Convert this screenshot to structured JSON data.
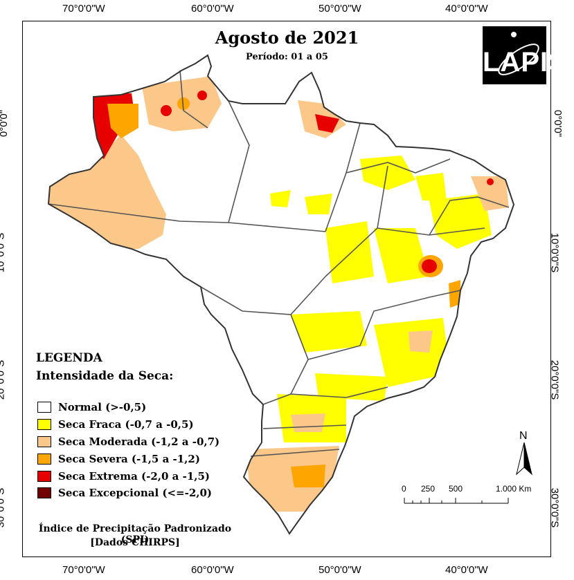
{
  "map": {
    "title": "Agosto de 2021",
    "subtitle": "Período: 01 a 05",
    "logo_text": "LAPIS",
    "lon_ticks": [
      "70°0'0\"W",
      "60°0'0\"W",
      "50°0'0\"W",
      "40°0'0\"W"
    ],
    "lat_ticks": [
      "0°0'0\"",
      "10°0'0\"S",
      "20°0'0\"S",
      "30°0'0\"S"
    ],
    "legend": {
      "heading": "LEGENDA",
      "subheading": "Intensidade da Seca:",
      "items": [
        {
          "label": "Normal (>-0,5)",
          "color": "#ffffff"
        },
        {
          "label": "Seca Fraca (-0,7 a -0,5)",
          "color": "#ffff00"
        },
        {
          "label": "Seca Moderada (-1,2 a -0,7)",
          "color": "#fcc88a"
        },
        {
          "label": "Seca Severa (-1,5 a -1,2)",
          "color": "#ffa500"
        },
        {
          "label": "Seca Extrema (-2,0 a -1,5)",
          "color": "#e60000"
        },
        {
          "label": "Seca Excepcional (<=-2,0)",
          "color": "#730000"
        }
      ]
    },
    "footer_line1": "Índice de Precipitação Padronizado (SPI)",
    "footer_line2": "[Dados CHIRPS]",
    "north_label": "N",
    "scale": {
      "labels": [
        "0",
        "250",
        "500",
        "1.000 Km"
      ]
    }
  }
}
